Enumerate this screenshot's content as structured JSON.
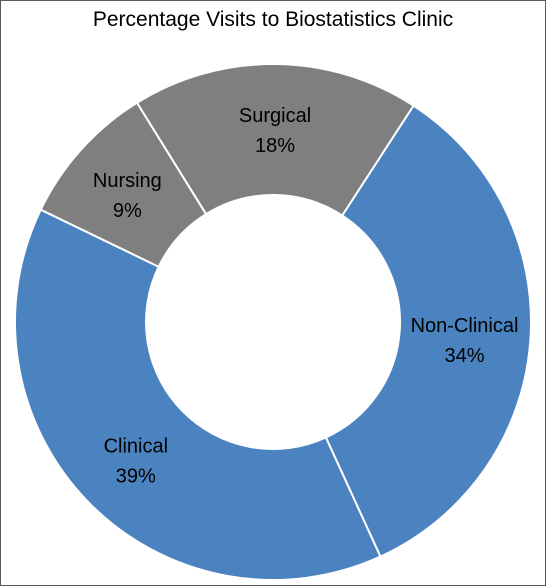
{
  "chart_data": {
    "type": "pie",
    "style": "donut",
    "title": "Percentage Visits to Biostatistics Clinic",
    "slices": [
      {
        "name": "Non-Clinical",
        "value": 34,
        "label": "34%",
        "color": "#4a83c0"
      },
      {
        "name": "Clinical",
        "value": 39,
        "label": "39%",
        "color": "#4a83c0"
      },
      {
        "name": "Nursing",
        "value": 9,
        "label": "9%",
        "color": "#7f7f7f"
      },
      {
        "name": "Surgical",
        "value": 18,
        "label": "18%",
        "color": "#7f7f7f"
      }
    ],
    "start_angle_deg": -57,
    "direction": "clockwise",
    "slice_border_color": "#ffffff",
    "legend": "none"
  }
}
